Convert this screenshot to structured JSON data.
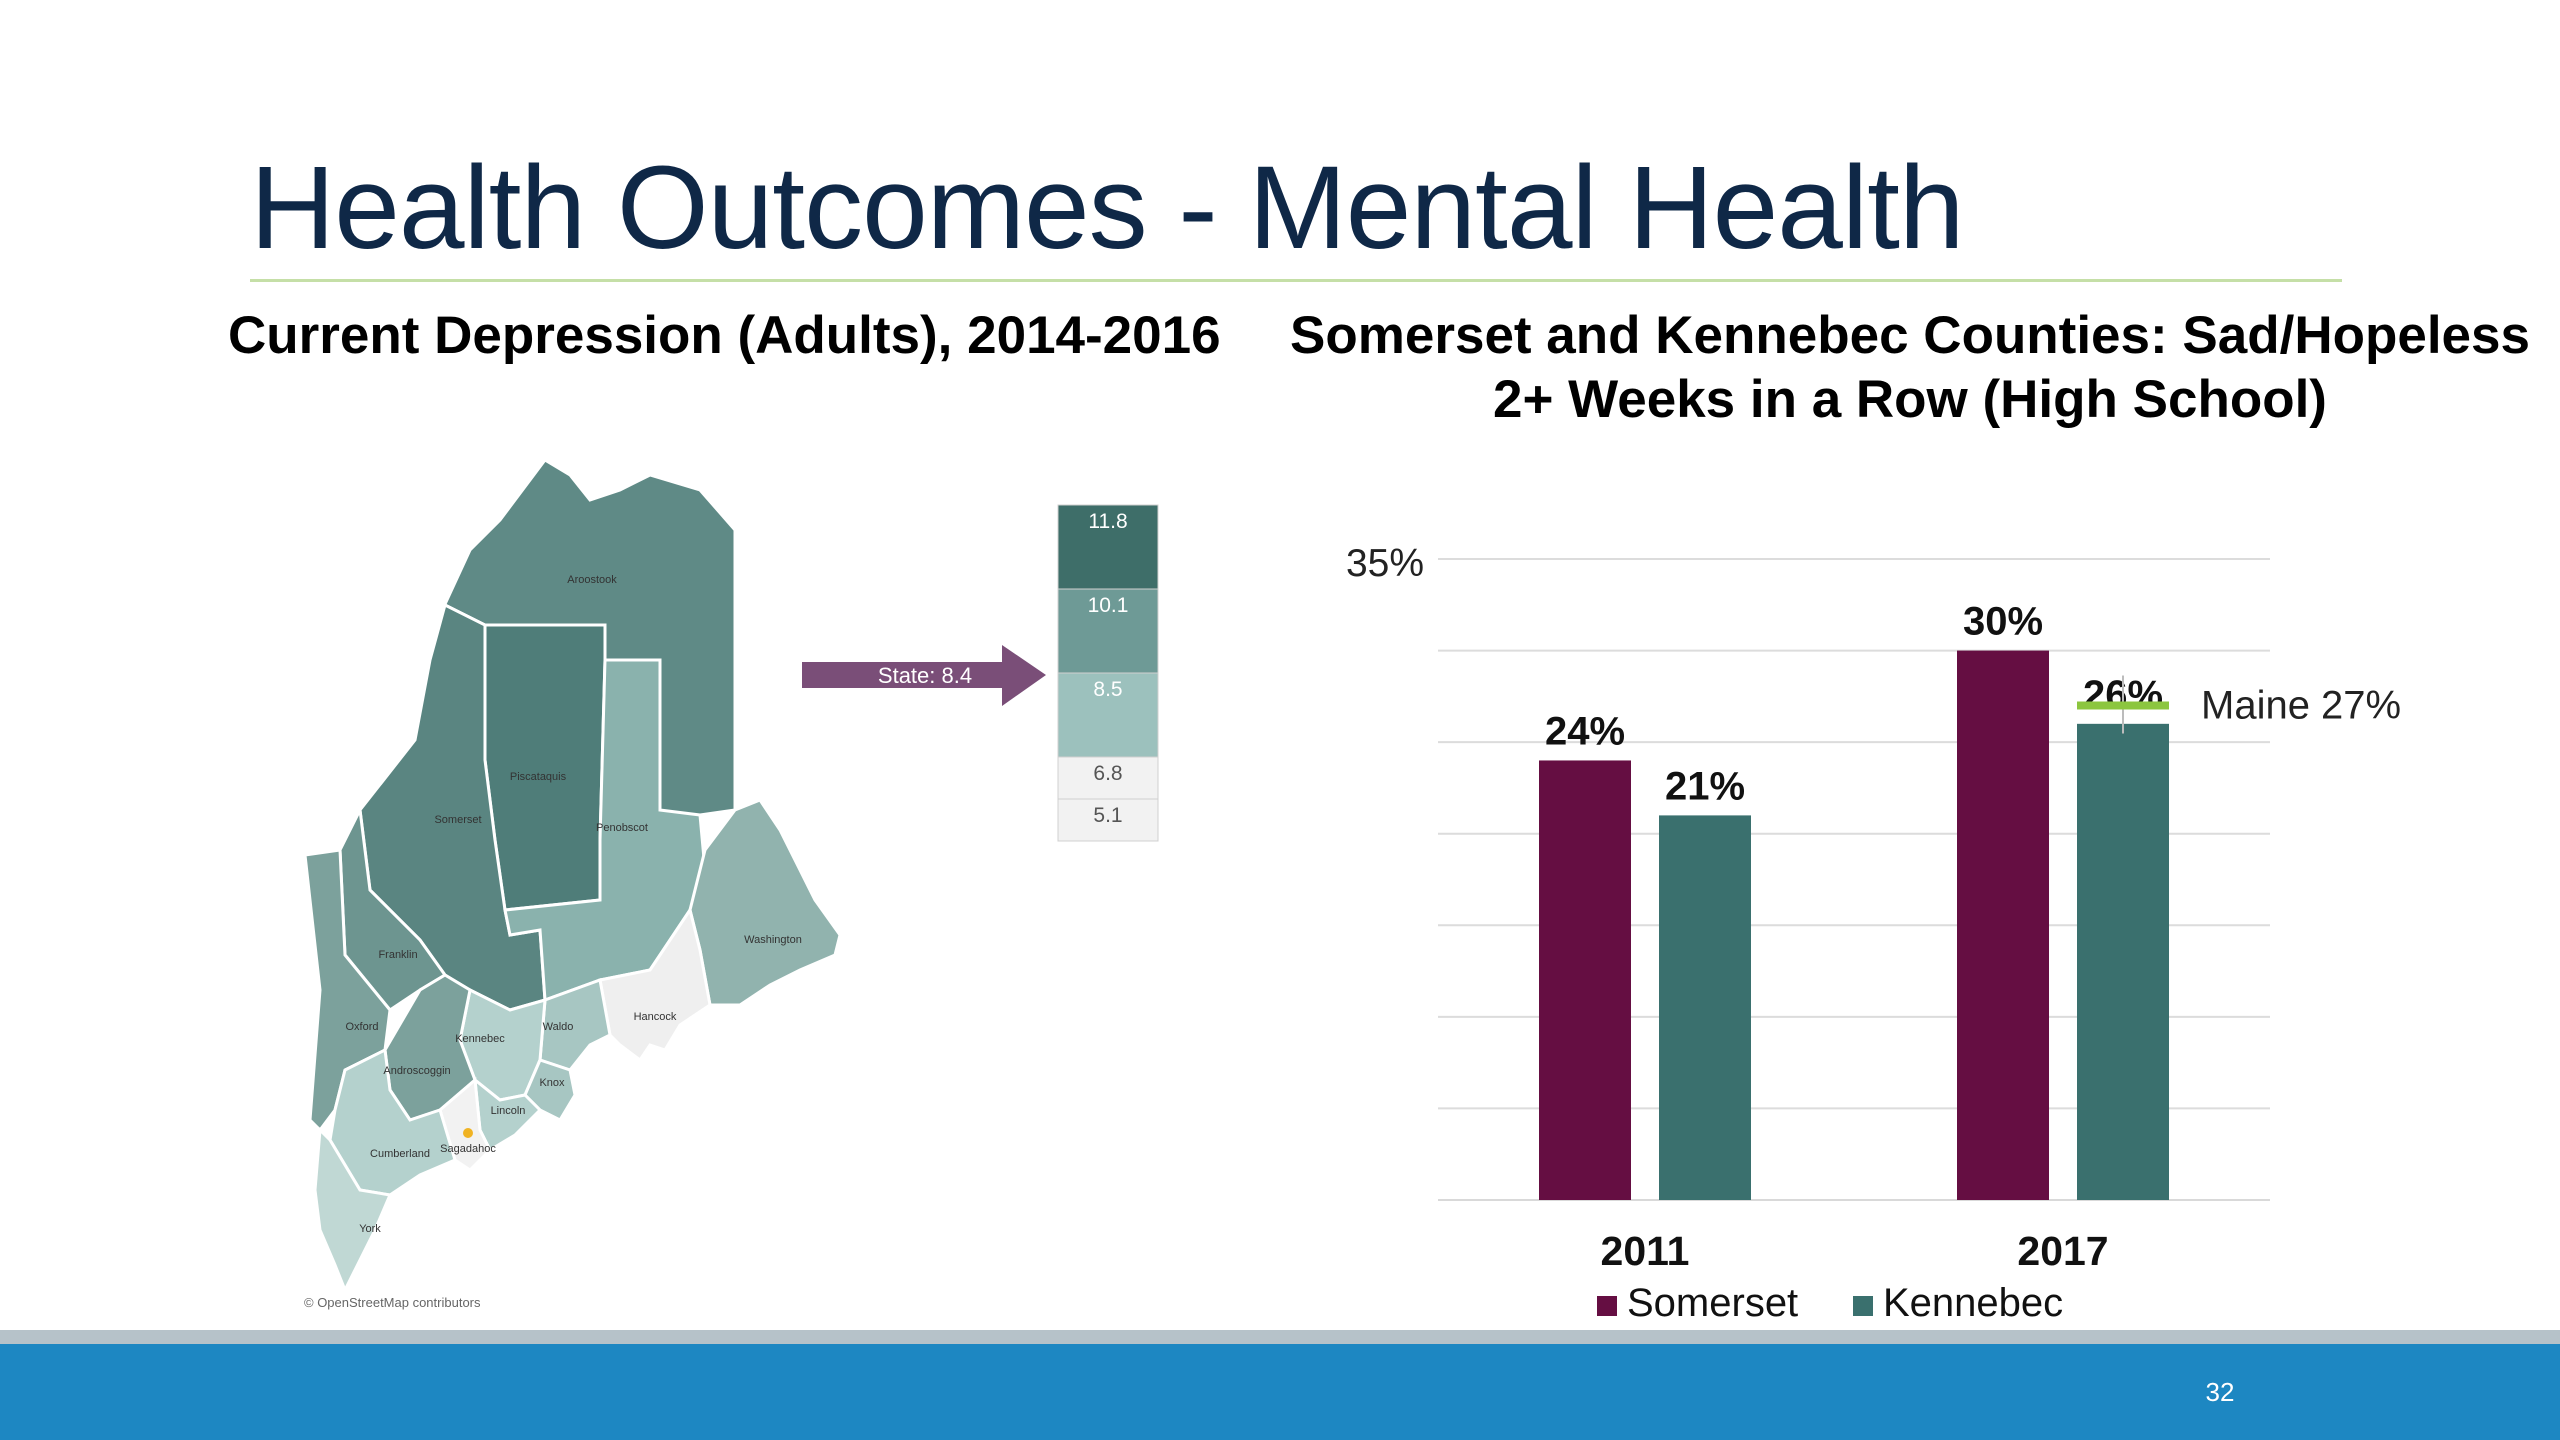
{
  "slide": {
    "title": "Health Outcomes - Mental Health",
    "page_number": "32"
  },
  "map": {
    "title": "Current Depression (Adults), 2014-2016",
    "state_label": "State: 8.4",
    "legend_values": [
      "11.8",
      "10.1",
      "8.5",
      "6.8",
      "5.1"
    ],
    "legend_colors": [
      "#3e6e69",
      "#6e9a96",
      "#9cc1bd",
      "#f2f2f2",
      "#f2f2f2"
    ],
    "credit": "© OpenStreetMap contributors",
    "counties": [
      {
        "name": "Aroostook",
        "value_bin": "11.8"
      },
      {
        "name": "Piscataquis",
        "value_bin": "11.8"
      },
      {
        "name": "Somerset",
        "value_bin": "11.8"
      },
      {
        "name": "Penobscot",
        "value_bin": "10.1"
      },
      {
        "name": "Franklin",
        "value_bin": "10.1"
      },
      {
        "name": "Washington",
        "value_bin": "10.1"
      },
      {
        "name": "Oxford",
        "value_bin": "10.1"
      },
      {
        "name": "Kennebec",
        "value_bin": "8.5"
      },
      {
        "name": "Waldo",
        "value_bin": "8.5"
      },
      {
        "name": "Hancock",
        "value_bin": "6.8"
      },
      {
        "name": "Androscoggin",
        "value_bin": "10.1"
      },
      {
        "name": "Knox",
        "value_bin": "8.5"
      },
      {
        "name": "Lincoln",
        "value_bin": "8.5"
      },
      {
        "name": "Cumberland",
        "value_bin": "8.5"
      },
      {
        "name": "Sagadahoc",
        "value_bin": "6.8"
      },
      {
        "name": "York",
        "value_bin": "8.5"
      }
    ],
    "colors": {
      "arrow": "#7a4e78"
    }
  },
  "chart_data": {
    "type": "bar",
    "title": "Somerset and Kennebec Counties: Sad/Hopeless 2+ Weeks in a Row (High School)",
    "categories": [
      "2011",
      "2017"
    ],
    "series": [
      {
        "name": "Somerset",
        "values": [
          24,
          30
        ],
        "labels": [
          "24%",
          "30%"
        ],
        "color": "#650e42"
      },
      {
        "name": "Kennebec",
        "values": [
          21,
          26
        ],
        "labels": [
          "21%",
          "26%"
        ],
        "color": "#3a706e"
      }
    ],
    "ylim": [
      0,
      35
    ],
    "ytick_labels": [
      "35%"
    ],
    "gridlines": [
      5,
      10,
      15,
      20,
      25,
      30,
      35
    ],
    "reference": {
      "label": "Maine 27%",
      "value": 27,
      "color": "#8cc63f"
    },
    "legend_position": "bottom",
    "xlabel": "",
    "ylabel": ""
  }
}
